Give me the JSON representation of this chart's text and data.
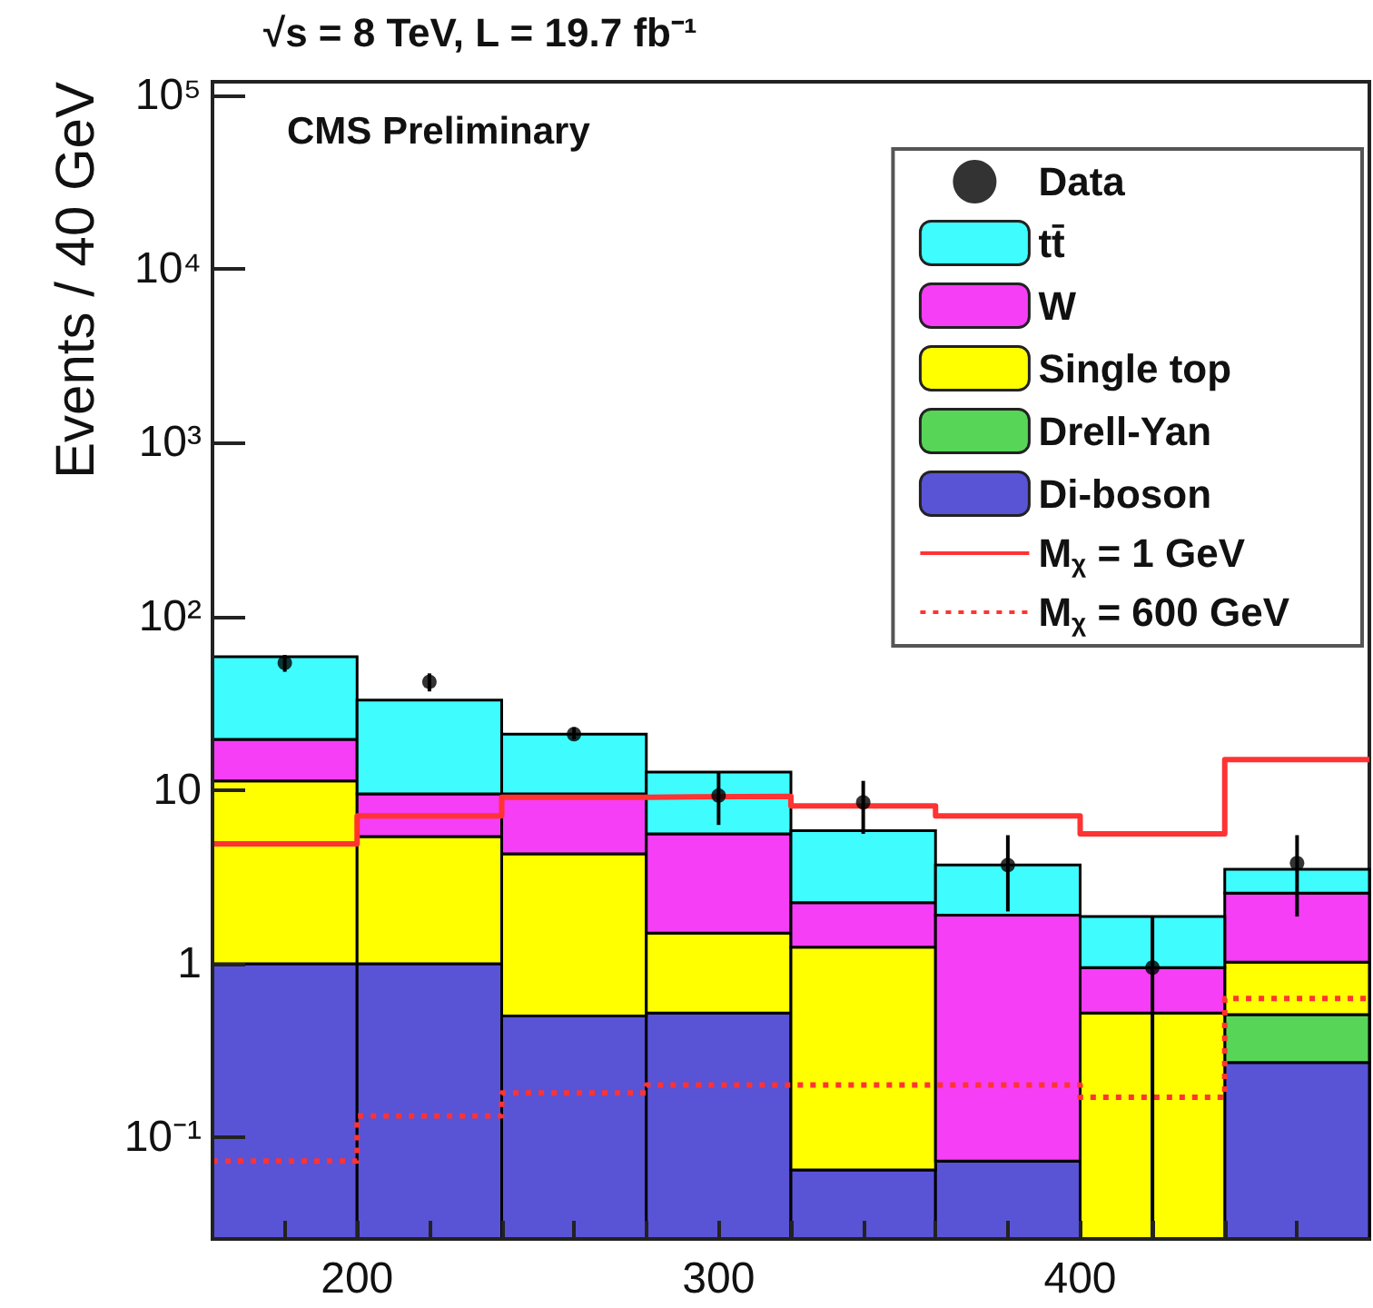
{
  "chart_data": {
    "type": "bar",
    "title": "√s = 8 TeV, L = 19.7 fb⁻¹",
    "ylabel": "Events / 40 GeV",
    "annotations": [
      "CMS Preliminary"
    ],
    "x": [
      180,
      220,
      260,
      300,
      340,
      380,
      420,
      460
    ],
    "stacked": true,
    "log": "y",
    "legend": "top right",
    "grid": false,
    "xlim": [
      160,
      480
    ],
    "xticks": [
      {
        "value": 180,
        "label": null
      },
      200,
      {
        "value": 220,
        "label": null
      },
      {
        "value": 240,
        "label": null
      },
      {
        "value": 260,
        "label": null
      },
      {
        "value": 280,
        "label": null
      },
      300,
      {
        "value": 320,
        "label": null
      },
      {
        "value": 340,
        "label": null
      },
      {
        "value": 360,
        "label": null
      },
      {
        "value": 380,
        "label": null
      },
      400,
      {
        "value": 420,
        "label": null
      },
      {
        "value": 440,
        "label": null
      },
      {
        "value": 460,
        "label": null
      }
    ],
    "ylim": [
      0.026,
      120000
    ],
    "yticks": [
      {
        "value": 0.1,
        "label": "10⁻¹"
      },
      1,
      10,
      {
        "value": 100,
        "label": "10²"
      },
      {
        "value": 1000,
        "label": "10³"
      },
      {
        "value": 10000,
        "label": "10⁴"
      },
      {
        "value": 100000,
        "label": "10⁵"
      }
    ],
    "series": [
      {
        "name": "Di-boson",
        "color": "#5953d6",
        "values": [
          1.0,
          1.0,
          0.5,
          0.52,
          0.065,
          0.073,
          null,
          0.27
        ]
      },
      {
        "name": "Drell-Yan",
        "color": "#57d557",
        "values": [
          null,
          null,
          null,
          null,
          null,
          null,
          null,
          0.24
        ]
      },
      {
        "name": "Single top",
        "color": "#ffff00",
        "values": [
          10.3,
          4.4,
          3.8,
          0.98,
          1.18,
          null,
          0.52,
          0.51
        ]
      },
      {
        "name": "W",
        "color": "#f53ef5",
        "values": [
          8.3,
          4.1,
          5.2,
          4.1,
          1.0,
          1.83,
          0.43,
          1.53
        ]
      },
      {
        "name": "tt̄",
        "color": "#3ffcff",
        "values": [
          39,
          23.5,
          11.5,
          7.1,
          3.6,
          1.8,
          0.92,
          0.95
        ]
      },
      {
        "name": "Data",
        "type": "scatter",
        "color": "#000000",
        "marker": "circle",
        "x": [
          180,
          220,
          260,
          300,
          340,
          380,
          420,
          460
        ],
        "values": [
          54,
          42,
          21,
          9.3,
          8.5,
          3.7,
          0.95,
          3.8
        ],
        "errors": [
          [
            48,
            60
          ],
          [
            37,
            47
          ],
          [
            19.6,
            23
          ],
          [
            6.3,
            12.7
          ],
          [
            5.6,
            11.3
          ],
          [
            2.0,
            5.5
          ],
          [
            0.026,
            1.87
          ],
          [
            1.87,
            5.5
          ]
        ]
      },
      {
        "name": "M$_{χ}$ = 1 GeV",
        "type": "step",
        "color": "#ff3333",
        "line_style": "solid",
        "x": [
          160,
          200,
          240,
          280,
          320,
          360,
          400,
          440,
          480
        ],
        "values": [
          4.9,
          7.1,
          9.1,
          9.2,
          8.1,
          7.1,
          5.6,
          15.0,
          15.0
        ]
      },
      {
        "name": "M$_{χ}$ = 600 GeV",
        "type": "step",
        "color": "#ff3333",
        "line_style": "dotted",
        "x": [
          160,
          200,
          240,
          280,
          320,
          360,
          400,
          440,
          480
        ],
        "values": [
          0.073,
          0.133,
          0.18,
          0.2,
          0.2,
          0.2,
          0.17,
          0.63,
          0.63
        ]
      }
    ]
  }
}
